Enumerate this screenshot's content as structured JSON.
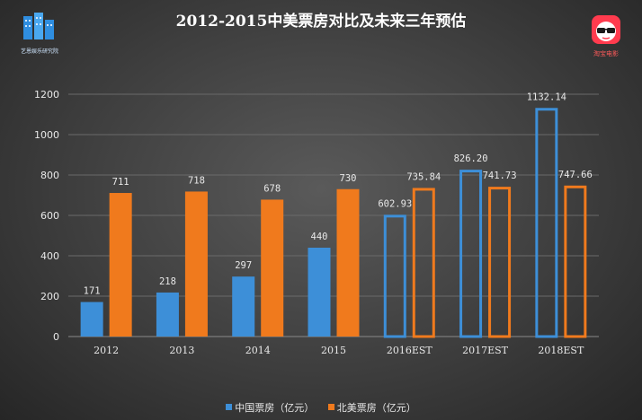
{
  "header": {
    "title": "2012-2015中美票房对比及未来三年预估",
    "logo_left_caption": "艺恩娱乐研究院",
    "logo_right_caption": "淘宝电影"
  },
  "chart_data": {
    "type": "bar",
    "title": "2012-2015中美票房对比及未来三年预估",
    "categories": [
      "2012",
      "2013",
      "2014",
      "2015",
      "2016EST",
      "2017EST",
      "2018EST"
    ],
    "series": [
      {
        "name": "中国票房（亿元）",
        "color": "#3d8fd8",
        "values": [
          171,
          218,
          297,
          440,
          602.93,
          826.2,
          1132.14
        ],
        "labels": [
          "171",
          "218",
          "297",
          "440",
          "602.93",
          "826.20",
          "1132.14"
        ]
      },
      {
        "name": "北美票房（亿元）",
        "color": "#f07a1d",
        "values": [
          711,
          718,
          678,
          730,
          735.84,
          741.73,
          747.66
        ],
        "labels": [
          "711",
          "718",
          "678",
          "730",
          "735.84",
          "741.73",
          "747.66"
        ]
      }
    ],
    "estimated_from_index": 4,
    "ylim": [
      0,
      1200
    ],
    "yticks": [
      0,
      200,
      400,
      600,
      800,
      1000,
      1200
    ],
    "grid": true,
    "legend": "bottom-center",
    "xlabel": "",
    "ylabel": ""
  }
}
